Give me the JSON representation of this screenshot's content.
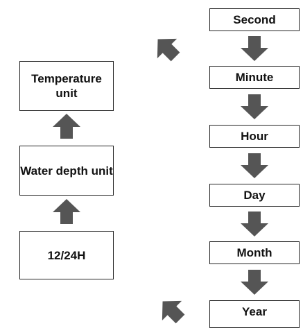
{
  "left_column": [
    "Temperature unit",
    "Water depth unit",
    "12/24H"
  ],
  "right_column": [
    "Second",
    "Minute",
    "Hour",
    "Day",
    "Month",
    "Year"
  ]
}
